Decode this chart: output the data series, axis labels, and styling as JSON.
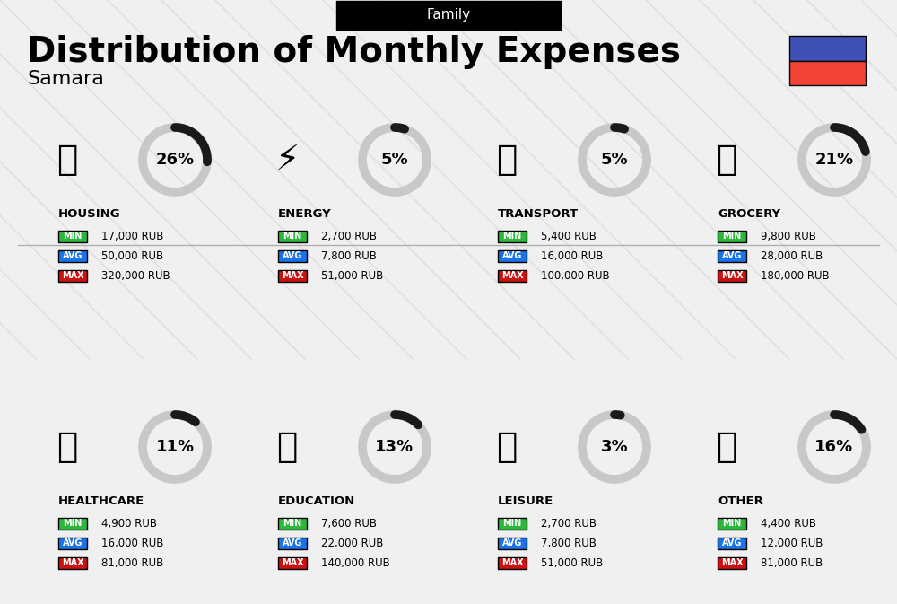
{
  "title": "Distribution of Monthly Expenses",
  "subtitle": "Samara",
  "category_label": "Family",
  "bg_color": "#f0f0f0",
  "categories": [
    {
      "name": "HOUSING",
      "pct": 26,
      "min_val": "17,000 RUB",
      "avg_val": "50,000 RUB",
      "max_val": "320,000 RUB",
      "row": 0,
      "col": 0
    },
    {
      "name": "ENERGY",
      "pct": 5,
      "min_val": "2,700 RUB",
      "avg_val": "7,800 RUB",
      "max_val": "51,000 RUB",
      "row": 0,
      "col": 1
    },
    {
      "name": "TRANSPORT",
      "pct": 5,
      "min_val": "5,400 RUB",
      "avg_val": "16,000 RUB",
      "max_val": "100,000 RUB",
      "row": 0,
      "col": 2
    },
    {
      "name": "GROCERY",
      "pct": 21,
      "min_val": "9,800 RUB",
      "avg_val": "28,000 RUB",
      "max_val": "180,000 RUB",
      "row": 0,
      "col": 3
    },
    {
      "name": "HEALTHCARE",
      "pct": 11,
      "min_val": "4,900 RUB",
      "avg_val": "16,000 RUB",
      "max_val": "81,000 RUB",
      "row": 1,
      "col": 0
    },
    {
      "name": "EDUCATION",
      "pct": 13,
      "min_val": "7,600 RUB",
      "avg_val": "22,000 RUB",
      "max_val": "140,000 RUB",
      "row": 1,
      "col": 1
    },
    {
      "name": "LEISURE",
      "pct": 3,
      "min_val": "2,700 RUB",
      "avg_val": "7,800 RUB",
      "max_val": "51,000 RUB",
      "row": 1,
      "col": 2
    },
    {
      "name": "OTHER",
      "pct": 16,
      "min_val": "4,400 RUB",
      "avg_val": "12,000 RUB",
      "max_val": "81,000 RUB",
      "row": 1,
      "col": 3
    }
  ],
  "min_color": "#2db83d",
  "avg_color": "#1a73e8",
  "max_color": "#cc1111",
  "ring_active_color": "#1a1a1a",
  "ring_bg_color": "#c8c8c8",
  "label_colors": {
    "HOUSING": "#1565c0",
    "ENERGY": "#00897b",
    "TRANSPORT": "#00897b",
    "GROCERY": "#e65100",
    "HEALTHCARE": "#c62828",
    "EDUCATION": "#1b5e20",
    "LEISURE": "#e65100",
    "OTHER": "#795548"
  },
  "flag_colors": [
    "#3f51b5",
    "#f44336"
  ],
  "diag_line_color": "#d0d0d0"
}
